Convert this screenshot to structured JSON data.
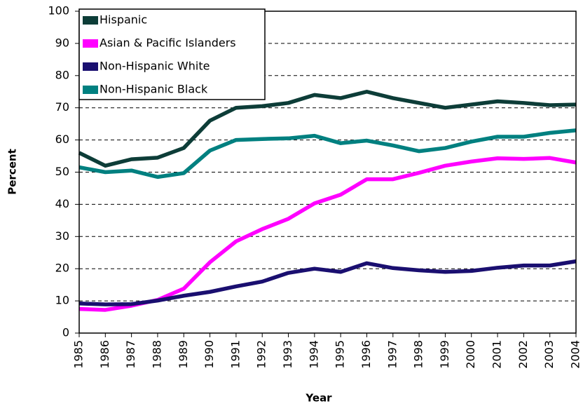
{
  "chart_data": {
    "type": "line",
    "x_label": "Year",
    "y_label": "Percent",
    "x": [
      1985,
      1986,
      1987,
      1988,
      1989,
      1990,
      1991,
      1992,
      1993,
      1994,
      1995,
      1996,
      1997,
      1998,
      1999,
      2000,
      2001,
      2002,
      2003,
      2004
    ],
    "xlim": [
      1985,
      2004
    ],
    "xticks": [
      1985,
      1986,
      1987,
      1988,
      1989,
      1990,
      1991,
      1992,
      1993,
      1994,
      1995,
      1996,
      1997,
      1998,
      1999,
      2000,
      2001,
      2002,
      2003,
      2004
    ],
    "ylim": [
      0,
      100
    ],
    "yticks": [
      0,
      10,
      20,
      30,
      40,
      50,
      60,
      70,
      80,
      90,
      100
    ],
    "grid": true,
    "legend": "upper left",
    "series": [
      {
        "name": "Hispanic",
        "color": "#0d3d38",
        "values": [
          56,
          52,
          54,
          54.5,
          57.5,
          66,
          70,
          70.5,
          71.5,
          74,
          73,
          75,
          73,
          71.5,
          70,
          71,
          72,
          71.5,
          70.8,
          71
        ]
      },
      {
        "name": "Asian & Pacific Islanders",
        "color": "#ff00ff",
        "values": [
          7.5,
          7.2,
          8.5,
          10.3,
          13.8,
          22,
          28.5,
          32.3,
          35.5,
          40.3,
          43,
          47.8,
          47.8,
          49.8,
          52,
          53.3,
          54.3,
          54.1,
          54.4,
          53
        ]
      },
      {
        "name": "Non-Hispanic White",
        "color": "#1a0f70",
        "values": [
          9.2,
          8.9,
          9,
          10.1,
          11.6,
          12.8,
          14.5,
          16,
          18.7,
          20,
          19,
          21.7,
          20.2,
          19.5,
          19,
          19.3,
          20.3,
          21,
          21,
          22.3
        ]
      },
      {
        "name": "Non-Hispanic Black",
        "color": "#008080",
        "values": [
          51.5,
          50,
          50.5,
          48.5,
          49.7,
          56.7,
          60,
          60.3,
          60.5,
          61.3,
          59,
          59.8,
          58.3,
          56.5,
          57.5,
          59.5,
          61,
          61,
          62.2,
          63
        ]
      }
    ]
  }
}
